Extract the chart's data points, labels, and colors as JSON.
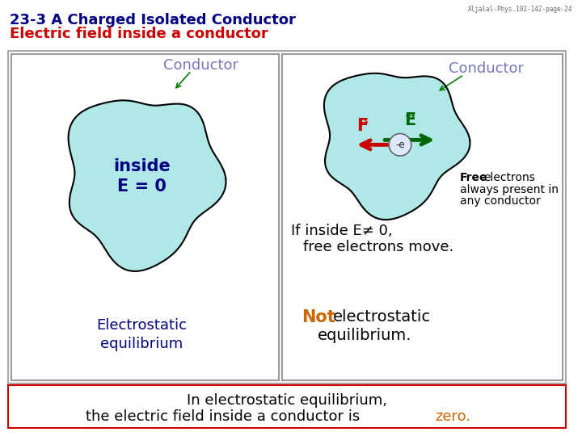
{
  "title_line1": "23-3 A Charged Isolated Conductor",
  "title_line2": "Electric field inside a conductor",
  "title_color1": "#000080",
  "title_color2": "#cc0000",
  "watermark": "Aljalal-Phys.102-142-page-24",
  "bg_color": "#ffffff",
  "blob_color": "#b0e8e8",
  "blob_edge": "#000000",
  "conductor_label_color": "#7777bb",
  "left_inside_color": "#000080",
  "left_bottom_color": "#000080",
  "E_arrow_color": "#006600",
  "F_arrow_color": "#cc0000",
  "not_color": "#cc6600",
  "bottom_box_color": "#cc0000",
  "bottom_colored_color": "#cc6600"
}
